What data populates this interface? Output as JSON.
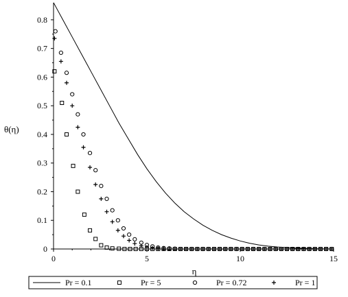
{
  "chart_data": {
    "type": "line",
    "xlabel": "η",
    "ylabel": "θ(η)",
    "xlim": [
      0,
      15
    ],
    "ylim": [
      0,
      0.85
    ],
    "x_ticks": [
      "0",
      "5",
      "10",
      "15"
    ],
    "y_ticks": [
      "0",
      "0.1",
      "0.2",
      "0.3",
      "0.4",
      "0.5",
      "0.6",
      "0.7",
      "0.8"
    ],
    "x_tick_values": [
      0,
      5,
      10,
      15
    ],
    "y_tick_values": [
      0,
      0.1,
      0.2,
      0.3,
      0.4,
      0.5,
      0.6,
      0.7,
      0.8
    ],
    "grid": false,
    "legend_position": "bottom",
    "series": [
      {
        "name": "Pr = 0.1",
        "marker": "line",
        "color": "#000000",
        "points": [
          [
            0,
            0.86
          ],
          [
            0.5,
            0.8
          ],
          [
            1,
            0.74
          ],
          [
            1.5,
            0.68
          ],
          [
            2,
            0.62
          ],
          [
            2.5,
            0.56
          ],
          [
            3,
            0.5
          ],
          [
            3.5,
            0.44
          ],
          [
            4,
            0.385
          ],
          [
            4.5,
            0.33
          ],
          [
            5,
            0.28
          ],
          [
            5.5,
            0.235
          ],
          [
            6,
            0.195
          ],
          [
            6.5,
            0.16
          ],
          [
            7,
            0.13
          ],
          [
            7.5,
            0.105
          ],
          [
            8,
            0.083
          ],
          [
            8.5,
            0.065
          ],
          [
            9,
            0.05
          ],
          [
            9.5,
            0.038
          ],
          [
            10,
            0.028
          ],
          [
            10.5,
            0.02
          ],
          [
            11,
            0.014
          ],
          [
            11.5,
            0.01
          ],
          [
            12,
            0.007
          ],
          [
            12.5,
            0.005
          ],
          [
            13,
            0.003
          ],
          [
            14,
            0.001
          ],
          [
            15,
            0
          ]
        ]
      },
      {
        "name": "Pr = 5",
        "marker": "square",
        "color": "#000000",
        "points": [
          [
            0.05,
            0.62
          ],
          [
            0.45,
            0.51
          ],
          [
            0.7,
            0.4
          ],
          [
            1.05,
            0.29
          ],
          [
            1.3,
            0.2
          ],
          [
            1.65,
            0.12
          ],
          [
            1.95,
            0.065
          ],
          [
            2.25,
            0.035
          ],
          [
            2.55,
            0.013
          ],
          [
            2.85,
            0.005
          ],
          [
            3.15,
            0.002
          ],
          [
            3.5,
            0.001
          ],
          [
            3.8,
            0
          ],
          [
            4.1,
            0
          ],
          [
            4.4,
            0
          ],
          [
            4.7,
            0
          ],
          [
            5.0,
            0
          ],
          [
            5.3,
            0
          ],
          [
            5.6,
            0
          ],
          [
            5.9,
            0
          ],
          [
            6.2,
            0
          ],
          [
            6.5,
            0
          ],
          [
            6.8,
            0
          ],
          [
            7.1,
            0
          ],
          [
            7.4,
            0
          ],
          [
            7.7,
            0
          ],
          [
            8.0,
            0
          ],
          [
            8.3,
            0
          ],
          [
            8.6,
            0
          ],
          [
            8.9,
            0
          ],
          [
            9.2,
            0
          ],
          [
            9.5,
            0
          ],
          [
            9.8,
            0
          ],
          [
            10.1,
            0
          ],
          [
            10.4,
            0
          ],
          [
            10.7,
            0
          ],
          [
            11.0,
            0
          ],
          [
            11.3,
            0
          ],
          [
            11.6,
            0
          ],
          [
            11.9,
            0
          ],
          [
            12.2,
            0
          ],
          [
            12.5,
            0
          ],
          [
            12.8,
            0
          ],
          [
            13.1,
            0
          ],
          [
            13.4,
            0
          ],
          [
            13.7,
            0
          ],
          [
            14.0,
            0
          ],
          [
            14.3,
            0
          ],
          [
            14.6,
            0
          ],
          [
            14.9,
            0
          ]
        ]
      },
      {
        "name": "Pr = 0.72",
        "marker": "circle",
        "color": "#000000",
        "points": [
          [
            0.1,
            0.76
          ],
          [
            0.4,
            0.685
          ],
          [
            0.7,
            0.615
          ],
          [
            1.0,
            0.54
          ],
          [
            1.3,
            0.47
          ],
          [
            1.6,
            0.4
          ],
          [
            1.95,
            0.335
          ],
          [
            2.25,
            0.275
          ],
          [
            2.55,
            0.22
          ],
          [
            2.85,
            0.175
          ],
          [
            3.15,
            0.135
          ],
          [
            3.45,
            0.1
          ],
          [
            3.75,
            0.072
          ],
          [
            4.05,
            0.05
          ],
          [
            4.35,
            0.034
          ],
          [
            4.7,
            0.022
          ],
          [
            5.0,
            0.014
          ],
          [
            5.3,
            0.009
          ],
          [
            5.6,
            0.005
          ],
          [
            5.9,
            0.003
          ],
          [
            6.2,
            0.002
          ],
          [
            6.5,
            0.001
          ],
          [
            6.8,
            0
          ],
          [
            7.1,
            0
          ],
          [
            7.4,
            0
          ],
          [
            7.7,
            0
          ],
          [
            8.0,
            0
          ],
          [
            8.3,
            0
          ],
          [
            8.6,
            0
          ],
          [
            8.9,
            0
          ],
          [
            9.2,
            0
          ],
          [
            9.5,
            0
          ],
          [
            9.8,
            0
          ],
          [
            10.1,
            0
          ],
          [
            10.4,
            0
          ],
          [
            10.7,
            0
          ],
          [
            11.0,
            0
          ],
          [
            11.3,
            0
          ],
          [
            11.6,
            0
          ],
          [
            11.9,
            0
          ],
          [
            12.2,
            0
          ],
          [
            12.5,
            0
          ],
          [
            12.8,
            0
          ],
          [
            13.1,
            0
          ],
          [
            13.4,
            0
          ],
          [
            13.7,
            0
          ],
          [
            14.0,
            0
          ],
          [
            14.3,
            0
          ],
          [
            14.6,
            0
          ],
          [
            14.9,
            0
          ]
        ]
      },
      {
        "name": "Pr = 1",
        "marker": "plus",
        "color": "#000000",
        "points": [
          [
            0.05,
            0.735
          ],
          [
            0.4,
            0.655
          ],
          [
            0.7,
            0.58
          ],
          [
            1.0,
            0.5
          ],
          [
            1.3,
            0.425
          ],
          [
            1.6,
            0.355
          ],
          [
            1.95,
            0.285
          ],
          [
            2.25,
            0.225
          ],
          [
            2.55,
            0.175
          ],
          [
            2.85,
            0.13
          ],
          [
            3.15,
            0.095
          ],
          [
            3.45,
            0.065
          ],
          [
            3.75,
            0.045
          ],
          [
            4.05,
            0.03
          ],
          [
            4.35,
            0.019
          ],
          [
            4.7,
            0.011
          ],
          [
            5.0,
            0.007
          ],
          [
            5.3,
            0.004
          ],
          [
            5.6,
            0.002
          ],
          [
            5.9,
            0.001
          ],
          [
            6.2,
            0
          ],
          [
            6.5,
            0
          ],
          [
            6.8,
            0
          ],
          [
            7.1,
            0
          ],
          [
            7.4,
            0
          ],
          [
            7.7,
            0
          ],
          [
            8.0,
            0
          ],
          [
            8.3,
            0
          ],
          [
            8.6,
            0
          ],
          [
            8.9,
            0
          ],
          [
            9.2,
            0
          ],
          [
            9.5,
            0
          ],
          [
            9.8,
            0
          ],
          [
            10.1,
            0
          ],
          [
            10.4,
            0
          ],
          [
            10.7,
            0
          ],
          [
            11.0,
            0
          ],
          [
            11.3,
            0
          ],
          [
            11.6,
            0
          ],
          [
            11.9,
            0
          ],
          [
            12.2,
            0
          ],
          [
            12.5,
            0
          ],
          [
            12.8,
            0
          ],
          [
            13.1,
            0
          ],
          [
            13.4,
            0
          ],
          [
            13.7,
            0
          ],
          [
            14.0,
            0
          ],
          [
            14.3,
            0
          ],
          [
            14.6,
            0
          ],
          [
            14.9,
            0
          ]
        ]
      }
    ]
  }
}
